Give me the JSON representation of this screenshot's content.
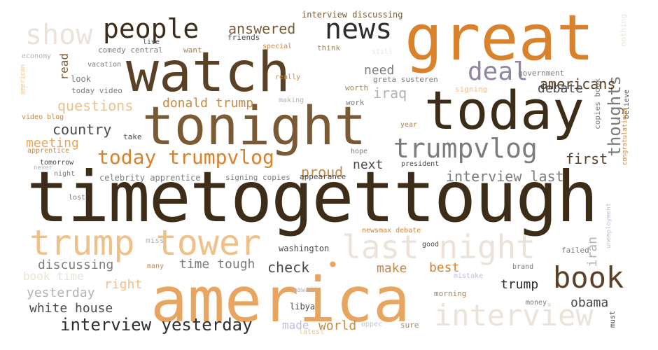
{
  "words": {
    "timetogettough": "timetogettough",
    "america": "america",
    "watch": "watch",
    "tonight": "tonight",
    "great": "great",
    "today": "today",
    "trump_tower": "trump tower",
    "last_night": "last night",
    "book": "book",
    "news": "news",
    "people": "people",
    "show": "show",
    "trumpvlog": "trumpvlog",
    "interview": "interview",
    "deal": "deal",
    "today_trumpvlog": "today trumpvlog",
    "thoughts": "thoughts",
    "interview_yesterday": "interview yesterday",
    "answered": "answered",
    "americans": "americans",
    "country": "country",
    "interview_last": "interview last",
    "donald_trump": "donald trump",
    "questions": "questions",
    "debate": "debate",
    "meeting": "meeting",
    "first": "first",
    "next": "next",
    "proud": "proud",
    "need": "need",
    "iraq": "iraq",
    "check": "check",
    "discussing": "discussing",
    "time_tough": "time tough",
    "make": "make",
    "best": "best",
    "trump": "trump",
    "obama": "obama",
    "white_house": "white house",
    "yesterday": "yesterday",
    "book_time": "book time",
    "right": "right",
    "read": "read",
    "world": "world",
    "made": "made",
    "interview_discussing": "interview discussing",
    "friends": "friends",
    "live": "live",
    "comedy_central": "comedy central",
    "want": "want",
    "special": "special",
    "think": "think",
    "still": "still",
    "nothing": "nothing",
    "economy": "economy",
    "american": "american",
    "vacation": "vacation",
    "look": "look",
    "today_video": "today video",
    "really": "really",
    "greta_susteren": "greta susteren",
    "government": "government",
    "worth": "worth",
    "signing": "signing",
    "copies_book": "copies book",
    "believe": "believe",
    "making": "making",
    "work": "work",
    "video_blog": "video blog",
    "take": "take",
    "apprentice": "apprentice",
    "year": "year",
    "hope": "hope",
    "congratulations": "congratulations",
    "tomorrow": "tomorrow",
    "never": "never",
    "night": "night",
    "celebrity_apprentice": "celebrity apprentice",
    "signing_copies": "signing copies",
    "appearance": "appearance",
    "president": "president",
    "lost": "lost",
    "iran": "iran",
    "unemployment": "unemployment",
    "miss": "miss",
    "washington": "washington",
    "newsmax_debate": "newsmax debate",
    "good": "good",
    "failed": "failed",
    "many": "many",
    "mistake": "mistake",
    "brand": "brand",
    "hawaii": "hawaii",
    "morning": "morning",
    "libya": "libya",
    "money": "money",
    "must": "must",
    "oppec": "oppec",
    "sure": "sure",
    "latest": "latest",
    "dot": "•"
  }
}
